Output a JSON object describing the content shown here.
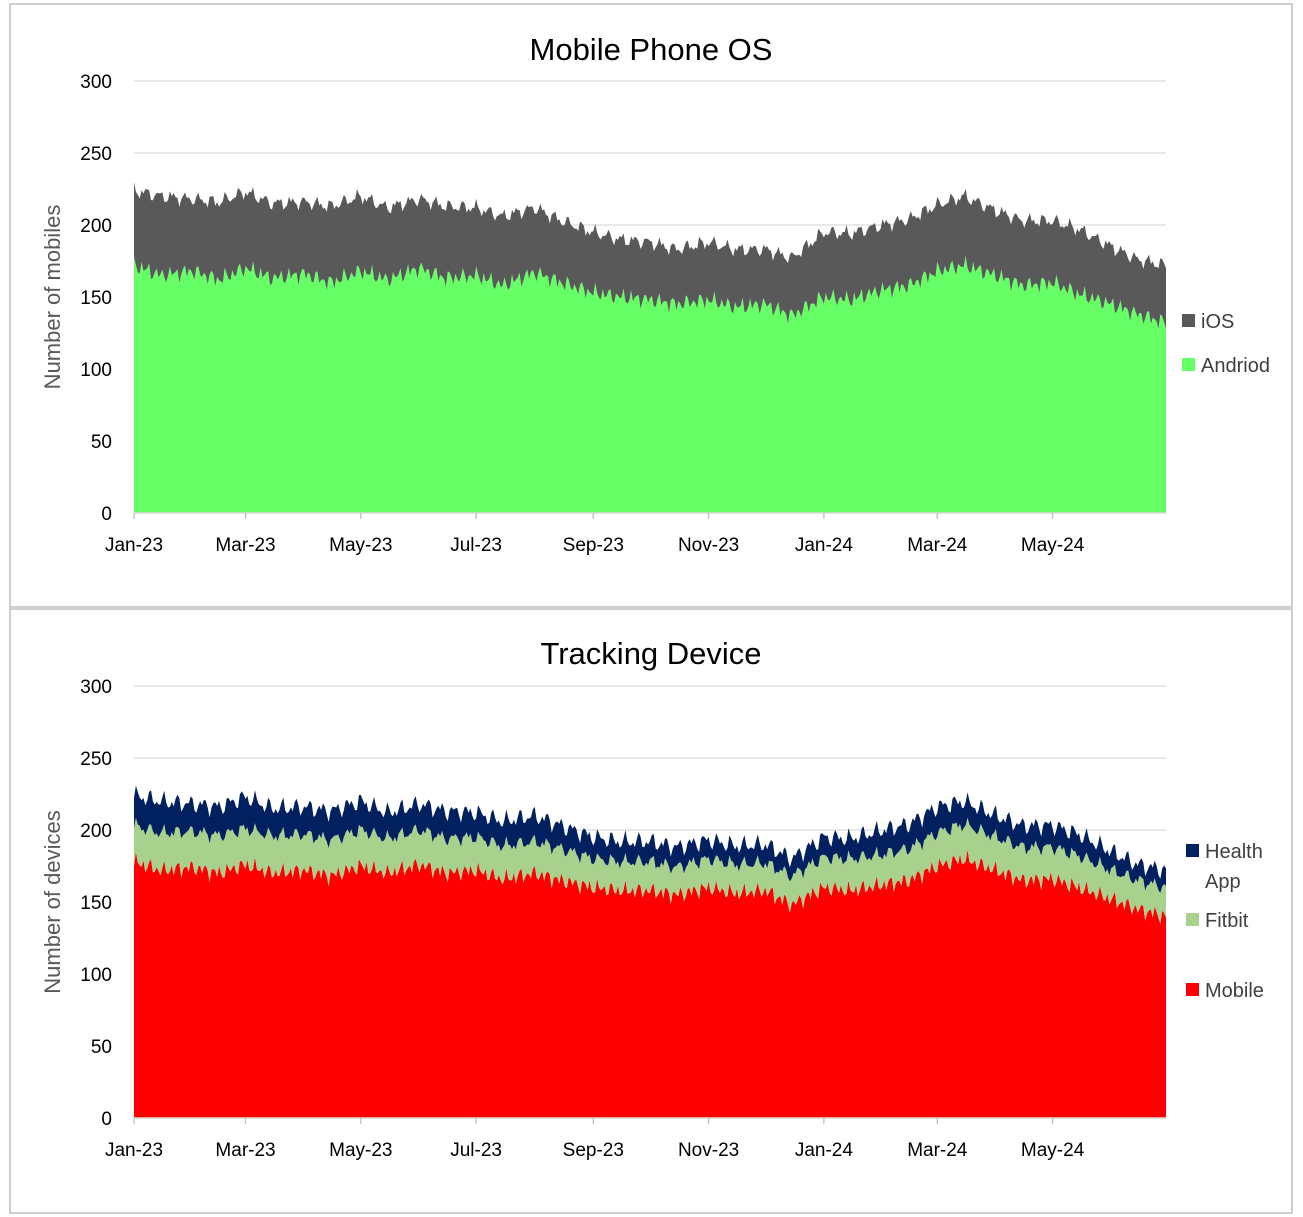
{
  "chart_data": [
    {
      "type": "area",
      "stacked": true,
      "title": "Mobile Phone OS",
      "ylabel": "Number of mobiles",
      "xlabel": "",
      "ylim": [
        0,
        300
      ],
      "yticks": [
        0,
        50,
        100,
        150,
        200,
        250,
        300
      ],
      "xlim": [
        "2023-01-01",
        "2024-06-30"
      ],
      "xticks": [
        "Jan-23",
        "Mar-23",
        "May-23",
        "Jul-23",
        "Sep-23",
        "Nov-23",
        "Jan-24",
        "Mar-24",
        "May-24"
      ],
      "grid": true,
      "legend": "right",
      "x": [
        "2023-01-01",
        "2023-01-15",
        "2023-02-01",
        "2023-02-15",
        "2023-03-01",
        "2023-03-15",
        "2023-04-01",
        "2023-04-15",
        "2023-05-01",
        "2023-05-15",
        "2023-06-01",
        "2023-06-15",
        "2023-07-01",
        "2023-07-15",
        "2023-08-01",
        "2023-08-15",
        "2023-09-01",
        "2023-09-15",
        "2023-10-01",
        "2023-10-15",
        "2023-11-01",
        "2023-11-15",
        "2023-12-01",
        "2023-12-15",
        "2024-01-01",
        "2024-01-15",
        "2024-02-01",
        "2024-02-15",
        "2024-03-01",
        "2024-03-15",
        "2024-04-01",
        "2024-04-15",
        "2024-05-01",
        "2024-05-15",
        "2024-06-01",
        "2024-06-15",
        "2024-06-30"
      ],
      "series": [
        {
          "name": "Andriod",
          "color": "#66ff66",
          "values": [
            172,
            165,
            168,
            162,
            170,
            163,
            166,
            160,
            168,
            162,
            170,
            163,
            165,
            158,
            167,
            160,
            153,
            150,
            148,
            145,
            148,
            143,
            145,
            137,
            150,
            148,
            155,
            158,
            168,
            172,
            165,
            158,
            160,
            152,
            145,
            138,
            132
          ]
        },
        {
          "name": "iOS",
          "color": "#595959",
          "values": [
            52,
            55,
            50,
            54,
            53,
            52,
            50,
            53,
            52,
            50,
            48,
            50,
            47,
            48,
            45,
            43,
            42,
            40,
            40,
            38,
            40,
            40,
            38,
            40,
            45,
            46,
            45,
            46,
            46,
            48,
            45,
            45,
            43,
            45,
            40,
            38,
            40
          ]
        }
      ]
    },
    {
      "type": "area",
      "stacked": true,
      "title": "Tracking Device",
      "ylabel": "Number of devices",
      "xlabel": "",
      "ylim": [
        0,
        300
      ],
      "yticks": [
        0,
        50,
        100,
        150,
        200,
        250,
        300
      ],
      "xlim": [
        "2023-01-01",
        "2024-06-30"
      ],
      "xticks": [
        "Jan-23",
        "Mar-23",
        "May-23",
        "Jul-23",
        "Sep-23",
        "Nov-23",
        "Jan-24",
        "Mar-24",
        "May-24"
      ],
      "grid": true,
      "legend": "right",
      "x": [
        "2023-01-01",
        "2023-01-15",
        "2023-02-01",
        "2023-02-15",
        "2023-03-01",
        "2023-03-15",
        "2023-04-01",
        "2023-04-15",
        "2023-05-01",
        "2023-05-15",
        "2023-06-01",
        "2023-06-15",
        "2023-07-01",
        "2023-07-15",
        "2023-08-01",
        "2023-08-15",
        "2023-09-01",
        "2023-09-15",
        "2023-10-01",
        "2023-10-15",
        "2023-11-01",
        "2023-11-15",
        "2023-12-01",
        "2023-12-15",
        "2024-01-01",
        "2024-01-15",
        "2024-02-01",
        "2024-02-15",
        "2024-03-01",
        "2024-03-15",
        "2024-04-01",
        "2024-04-15",
        "2024-05-01",
        "2024-05-15",
        "2024-06-01",
        "2024-06-15",
        "2024-06-30"
      ],
      "series": [
        {
          "name": "Mobile",
          "color": "#ff0000",
          "values": [
            178,
            172,
            174,
            170,
            176,
            170,
            172,
            168,
            175,
            170,
            176,
            170,
            172,
            166,
            170,
            165,
            160,
            158,
            158,
            155,
            160,
            156,
            158,
            148,
            160,
            158,
            162,
            165,
            175,
            180,
            172,
            165,
            166,
            160,
            152,
            145,
            140
          ]
        },
        {
          "name": "Fitbit",
          "color": "#a9d18e",
          "values": [
            25,
            26,
            25,
            26,
            25,
            26,
            25,
            25,
            25,
            24,
            24,
            24,
            23,
            23,
            22,
            22,
            20,
            20,
            20,
            19,
            20,
            20,
            19,
            20,
            21,
            22,
            21,
            22,
            23,
            24,
            23,
            23,
            22,
            22,
            20,
            20,
            20
          ]
        },
        {
          "name": "Health App",
          "color": "#002060",
          "values": [
            21,
            22,
            19,
            20,
            22,
            19,
            19,
            20,
            20,
            18,
            18,
            19,
            17,
            17,
            18,
            16,
            15,
            14,
            14,
            14,
            13,
            13,
            13,
            12,
            14,
            14,
            17,
            17,
            18,
            16,
            15,
            15,
            15,
            15,
            13,
            11,
            12
          ]
        }
      ]
    }
  ]
}
